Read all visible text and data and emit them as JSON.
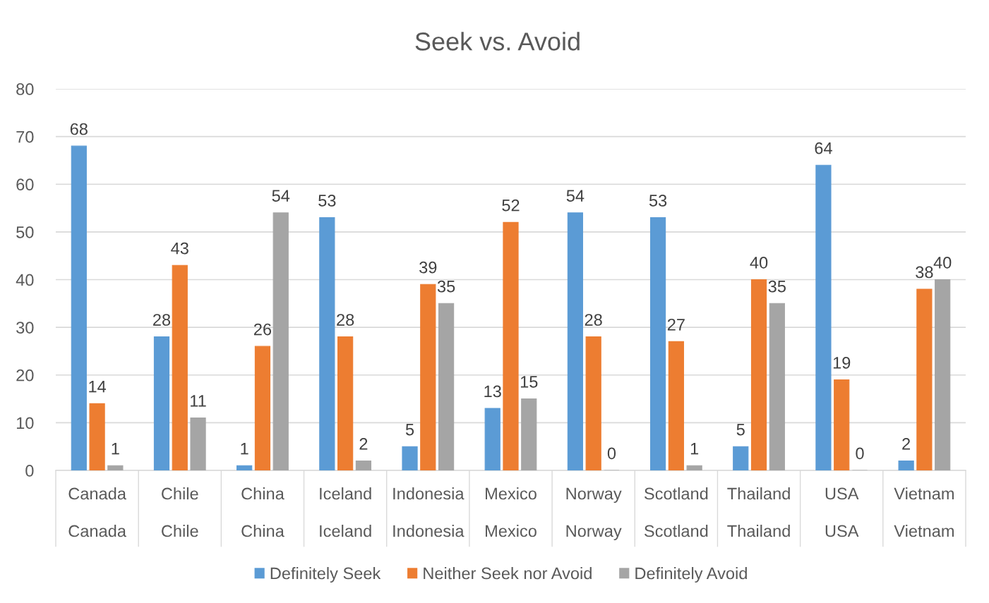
{
  "chart_data": {
    "type": "bar",
    "title": "Seek vs. Avoid",
    "categories": [
      "Canada\nCanada",
      "Chile\nChile",
      "China\nChina",
      "Iceland\nIceland",
      "Indonesia\nIndonesia",
      "Mexico\nMexico",
      "Norway\nNorway",
      "Scotland\nScotland",
      "Thailand\nThailand",
      "USA\nUSA",
      "Vietnam\nVietnam"
    ],
    "series": [
      {
        "name": "Definitely Seek",
        "color": "#5b9bd5",
        "values": [
          68,
          28,
          1,
          53,
          5,
          13,
          54,
          53,
          5,
          64,
          2
        ]
      },
      {
        "name": "Neither Seek nor Avoid",
        "color": "#ed7d31",
        "values": [
          14,
          43,
          26,
          28,
          39,
          52,
          28,
          27,
          40,
          19,
          38
        ]
      },
      {
        "name": "Definitely Avoid",
        "color": "#a5a5a5",
        "values": [
          1,
          11,
          54,
          2,
          35,
          15,
          0,
          1,
          35,
          0,
          40
        ]
      }
    ],
    "ylim": [
      0,
      80
    ],
    "yticks": [
      0,
      10,
      20,
      30,
      40,
      50,
      60,
      70,
      80
    ],
    "grid": "y",
    "legend": "bottom",
    "data_labels": true
  }
}
